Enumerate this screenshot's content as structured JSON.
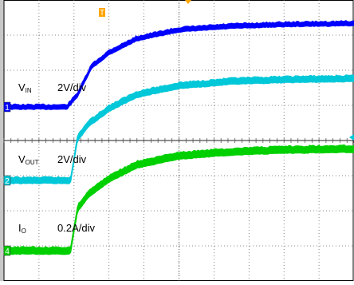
{
  "chart_data": {
    "type": "line",
    "title": "",
    "grid": true,
    "xlabel": "",
    "ylabel": "",
    "trigger_marker": "T",
    "series": [
      {
        "channel": "1",
        "label_main": "V",
        "label_sub": "IN",
        "scale": "2V/div",
        "color": "#0000ff",
        "x": [
          0,
          0.18,
          0.21,
          0.25,
          0.3,
          0.38,
          0.5,
          0.65,
          0.8,
          1.0
        ],
        "y": [
          0,
          0,
          0.35,
          1.15,
          1.55,
          1.95,
          2.2,
          2.3,
          2.35,
          2.38
        ]
      },
      {
        "channel": "2",
        "label_main": "V",
        "label_sub": "OUT",
        "scale": "2V/div",
        "color": "#00c8d8",
        "x": [
          0,
          0.19,
          0.21,
          0.24,
          0.3,
          0.38,
          0.5,
          0.65,
          0.8,
          1.0
        ],
        "y": [
          0,
          0,
          1.2,
          1.6,
          2.05,
          2.45,
          2.7,
          2.82,
          2.87,
          2.9
        ]
      },
      {
        "channel": "4",
        "label_main": "I",
        "label_sub": "O",
        "scale": "0.2A/div",
        "color": "#00d000",
        "x": [
          0,
          0.19,
          0.21,
          0.24,
          0.3,
          0.38,
          0.5,
          0.65,
          0.8,
          1.0
        ],
        "y": [
          0,
          0,
          1.2,
          1.6,
          2.05,
          2.45,
          2.7,
          2.82,
          2.87,
          2.9
        ]
      }
    ]
  }
}
